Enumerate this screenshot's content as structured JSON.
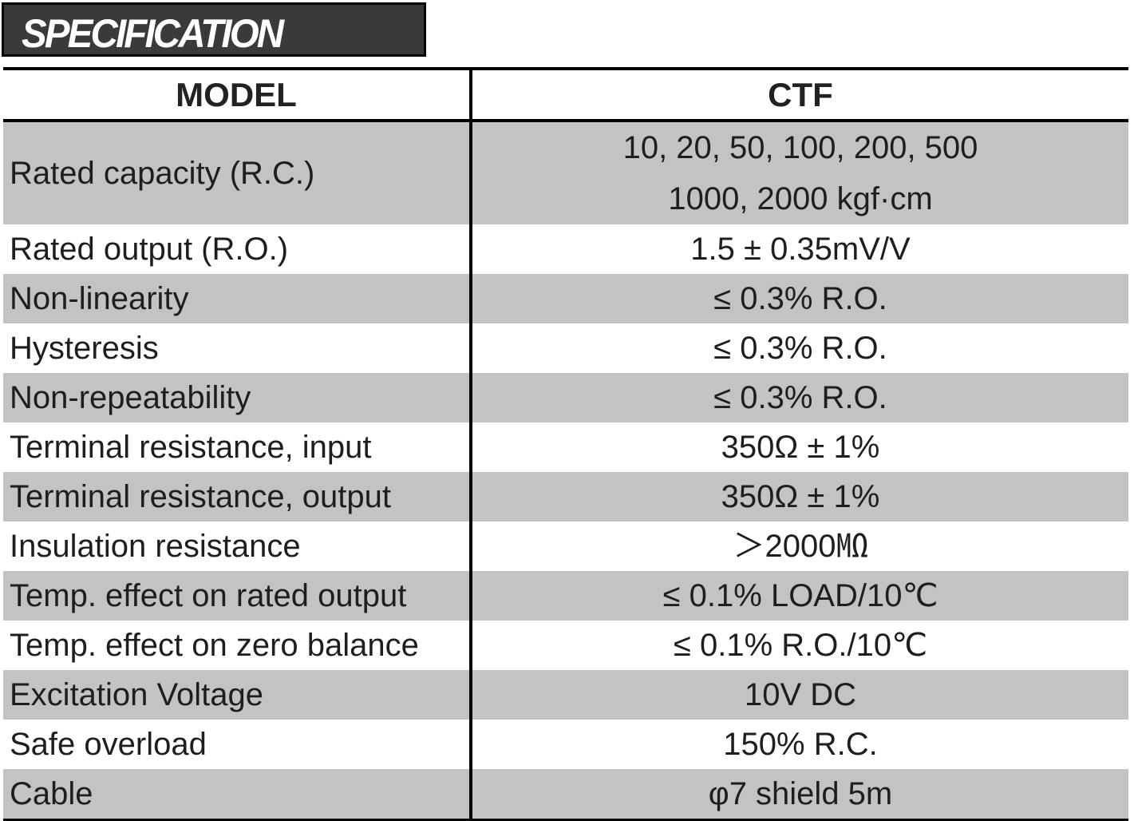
{
  "title": "SPECIFICATION",
  "header": {
    "model_label": "MODEL",
    "model_value": "CTF"
  },
  "rows": [
    {
      "label": "Rated capacity (R.C.)",
      "value_lines": [
        "10, 20, 50, 100, 200, 500",
        "1000, 2000 kgf·cm"
      ]
    },
    {
      "label": "Rated output (R.O.)",
      "value": "1.5 ± 0.35mV/V"
    },
    {
      "label": "Non-linearity",
      "value": "≤ 0.3% R.O."
    },
    {
      "label": "Hysteresis",
      "value": "≤ 0.3% R.O."
    },
    {
      "label": "Non-repeatability",
      "value": "≤ 0.3% R.O."
    },
    {
      "label": "Terminal resistance, input",
      "value": "350Ω ± 1%"
    },
    {
      "label": "Terminal resistance, output",
      "value": "350Ω ± 1%"
    },
    {
      "label": "Insulation resistance",
      "value": "＞2000㏁"
    },
    {
      "label": "Temp. effect on rated output",
      "value": "≤ 0.1% LOAD/10℃"
    },
    {
      "label": "Temp. effect on zero balance",
      "value": "≤ 0.1% R.O./10℃"
    },
    {
      "label": "Excitation Voltage",
      "value": "10V DC"
    },
    {
      "label": "Safe overload",
      "value": "150% R.C."
    },
    {
      "label": "Cable",
      "value": "φ7 shield 5m"
    }
  ],
  "colors": {
    "shaded_row": "#c3c3c3",
    "title_bg": "#3a3a3a",
    "text": "#1e1e1e"
  }
}
